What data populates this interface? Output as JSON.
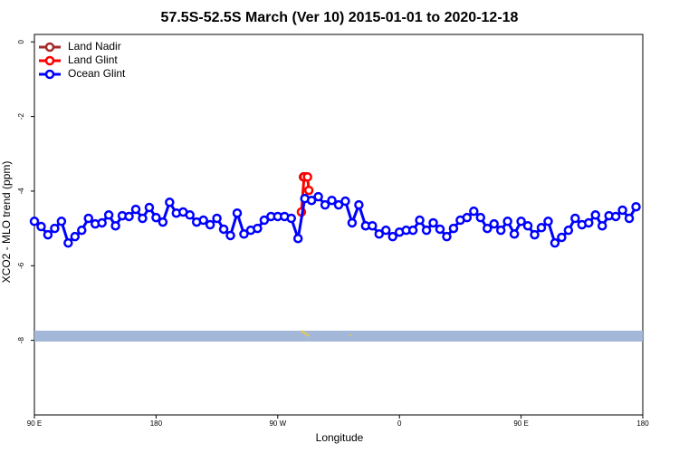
{
  "chart_data": {
    "type": "line",
    "title": "57.5S-52.5S March (Ver 10)   2015-01-01 to 2020-12-18",
    "xlabel": "Longitude",
    "ylabel": "XCO2 - MLO trend (ppm)",
    "xlim": [
      90,
      540
    ],
    "ylim": [
      -10,
      0.2
    ],
    "xticks": [
      {
        "value": 90,
        "label": "90 E"
      },
      180,
      {
        "value": 270,
        "label": "90 W"
      },
      {
        "value": 360,
        "label": "0"
      },
      {
        "value": 450,
        "label": "90 E"
      },
      {
        "value": 540,
        "label": "180"
      }
    ],
    "yticks": [
      0,
      -2,
      -4,
      -6,
      -8
    ],
    "legend": "top-left",
    "series": [
      {
        "name": "Land Nadir",
        "color": "#a52a2a",
        "x": [
          289,
          291
        ],
        "values": [
          -3.62,
          -3.62
        ]
      },
      {
        "name": "Land Glint",
        "color": "#ff0000",
        "x": [
          287.5,
          289.5,
          292,
          293
        ],
        "values": [
          -4.56,
          -3.62,
          -3.62,
          -3.98
        ]
      },
      {
        "name": "Ocean Glint",
        "color": "#0000ff",
        "x": [
          90,
          95,
          100,
          105,
          110,
          115,
          120,
          125,
          130,
          135,
          140,
          145,
          150,
          155,
          160,
          165,
          170,
          175,
          180,
          185,
          190,
          195,
          200,
          205,
          210,
          215,
          220,
          225,
          230,
          235,
          240,
          245,
          250,
          255,
          260,
          265,
          270,
          275,
          280,
          285,
          290,
          295,
          300,
          305,
          310,
          315,
          320,
          325,
          330,
          335,
          340,
          345,
          350,
          355,
          360,
          365,
          370,
          375,
          380,
          385,
          390,
          395,
          400,
          405,
          410,
          415,
          420,
          425,
          430,
          435,
          440,
          445,
          450,
          455,
          460,
          465,
          470,
          475,
          480,
          485,
          490,
          495,
          500,
          505,
          510,
          515,
          520,
          525,
          530,
          535
        ],
        "values": [
          -4.81,
          -4.95,
          -5.17,
          -5.0,
          -4.81,
          -5.39,
          -5.22,
          -5.05,
          -4.73,
          -4.88,
          -4.85,
          -4.64,
          -4.93,
          -4.66,
          -4.68,
          -4.49,
          -4.73,
          -4.44,
          -4.71,
          -4.83,
          -4.3,
          -4.59,
          -4.56,
          -4.64,
          -4.83,
          -4.78,
          -4.9,
          -4.73,
          -5.02,
          -5.19,
          -4.59,
          -5.15,
          -5.05,
          -5.0,
          -4.78,
          -4.68,
          -4.68,
          -4.68,
          -4.73,
          -5.27,
          -4.2,
          -4.25,
          -4.15,
          -4.37,
          -4.25,
          -4.37,
          -4.27,
          -4.85,
          -4.37,
          -4.93,
          -4.93,
          -5.15,
          -5.05,
          -5.22,
          -5.1,
          -5.05,
          -5.05,
          -4.78,
          -5.05,
          -4.85,
          -5.02,
          -5.22,
          -5.0,
          -4.78,
          -4.71,
          -4.54,
          -4.71,
          -5.0,
          -4.88,
          -5.05,
          -4.81,
          -5.15,
          -4.81,
          -4.93,
          -5.17,
          -4.98,
          -4.81,
          -5.39,
          -5.24,
          -5.05,
          -4.73,
          -4.9,
          -4.85,
          -4.64,
          -4.93,
          -4.66,
          -4.68,
          -4.51,
          -4.73,
          -4.42
        ]
      }
    ]
  }
}
